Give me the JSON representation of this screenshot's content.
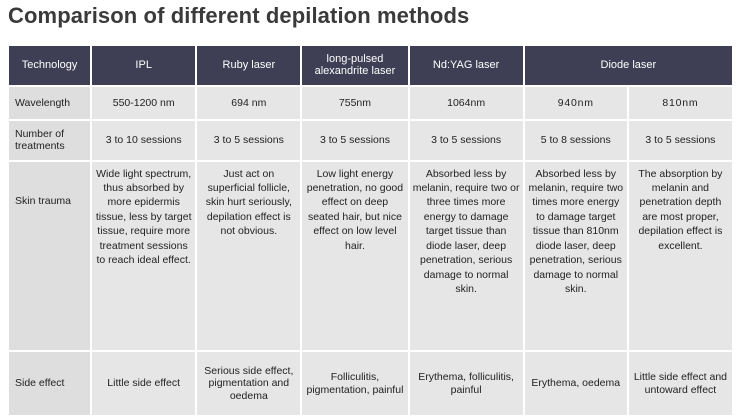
{
  "title": "Comparison of different depilation methods",
  "header": {
    "technology": "Technology",
    "ipl": "IPL",
    "ruby": "Ruby laser",
    "alex": "long-pulsed alexandrite laser",
    "ndyag": "Nd:YAG laser",
    "diode": "Diode laser"
  },
  "rows": {
    "wavelength": {
      "label": "Wavelength",
      "ipl": "550-1200 nm",
      "ruby": "694 nm",
      "alex": "755nm",
      "ndyag": "1064nm",
      "diode940": "940nm",
      "diode810": "810nm"
    },
    "treatments": {
      "label": "Number of treatments",
      "ipl": "3 to 10 sessions",
      "ruby": "3 to 5 sessions",
      "alex": "3 to 5 sessions",
      "ndyag": "3 to 5 sessions",
      "diode940": "5 to 8 sessions",
      "diode810": "3 to 5 sessions"
    },
    "skin_trauma": {
      "label": "Skin trauma",
      "ipl": "Wide light spectrum, thus absorbed by more epidermis tissue, less by target tissue, require more treatment sessions to reach ideal effect.",
      "ruby": "Just act on superficial follicle, skin hurt seriously, depilation effect is not obvious.",
      "alex": "Low light energy penetration, no good effect on deep seated hair, but nice effect on low level hair.",
      "ndyag": "Absorbed less by melanin, require two or three times more energy to damage target tissue than diode laser, deep penetration, serious damage to normal skin.",
      "diode940": "Absorbed less by melanin, require two times more energy to damage target tissue than 810nm diode laser, deep penetration, serious damage to normal skin.",
      "diode810": "The absorption by melanin and penetration depth are most proper, depilation effect is excellent."
    },
    "side_effect": {
      "label": "Side effect",
      "ipl": "Little side effect",
      "ruby": "Serious side effect, pigmentation and oedema",
      "alex": "Folliculitis, pigmentation, painful",
      "ndyag": "Erythema, folliculitis, painful",
      "diode940": "Erythema, oedema",
      "diode810": "Little side effect and untoward effect"
    }
  }
}
